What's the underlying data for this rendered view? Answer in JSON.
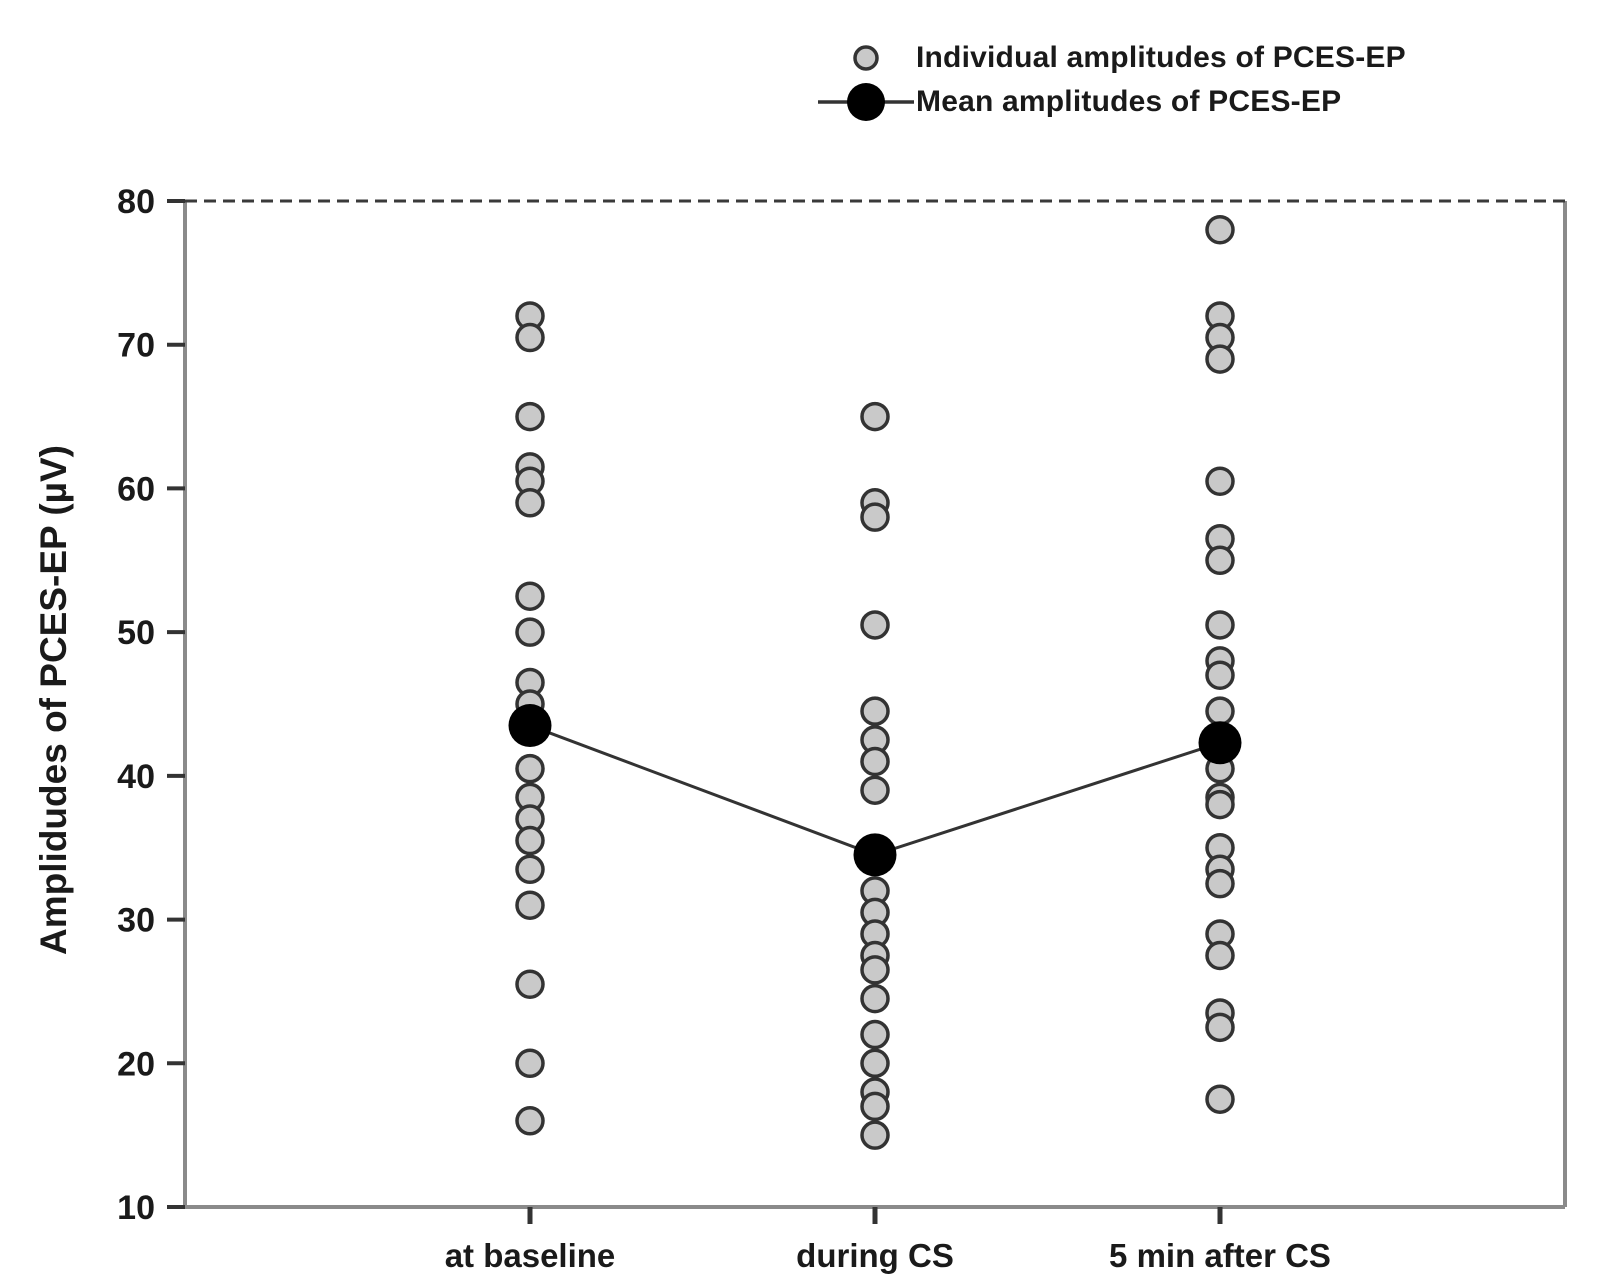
{
  "legend": {
    "items": [
      {
        "label": "Individual amplitudes of PCES-EP",
        "marker": "open-gray-circle"
      },
      {
        "label": "Mean amplitudes of PCES-EP",
        "marker": "filled-black-circle-with-line"
      }
    ]
  },
  "chart_data": {
    "type": "scatter",
    "subtype": "strip-plot-with-connected-means",
    "title": "",
    "xlabel": "",
    "ylabel": "Amplidudes of PCES-EP (µV)",
    "ylim": [
      10,
      80
    ],
    "yticks": [
      80,
      70,
      60,
      50,
      40,
      30,
      20,
      10
    ],
    "grid": false,
    "legend_position": "top-right",
    "categories": [
      "at baseline",
      "during CS",
      "5 min after CS"
    ],
    "series": [
      {
        "name": "Individual amplitudes of PCES-EP",
        "style": "open-circle",
        "values_by_category": [
          [
            72,
            70.5,
            65,
            61.5,
            60.5,
            59,
            52.5,
            50,
            46.5,
            45,
            40.5,
            38.5,
            37,
            35.5,
            33.5,
            31,
            25.5,
            20,
            16
          ],
          [
            65,
            59,
            58,
            50.5,
            44.5,
            42.5,
            41,
            39,
            32,
            30.5,
            29,
            27.5,
            26.5,
            24.5,
            22,
            20,
            18,
            17,
            15
          ],
          [
            78,
            72,
            70.5,
            69,
            60.5,
            56.5,
            55,
            50.5,
            48,
            47,
            44.5,
            40.5,
            38.5,
            38,
            35,
            33.5,
            32.5,
            29,
            27.5,
            23.5,
            22.5,
            17.5
          ]
        ]
      },
      {
        "name": "Mean amplitudes of PCES-EP",
        "style": "filled-circle-connected-line",
        "values": [
          43.5,
          34.5,
          42.3
        ]
      }
    ],
    "colors": {
      "individual_fill": "#c9c9c9",
      "individual_stroke": "#333333",
      "mean_fill": "#000000",
      "mean_line": "#333333",
      "frame": "#8a8a8a",
      "frame_top": "#3a3a3a",
      "tick": "#333333",
      "text": "#1a1a1a"
    }
  }
}
